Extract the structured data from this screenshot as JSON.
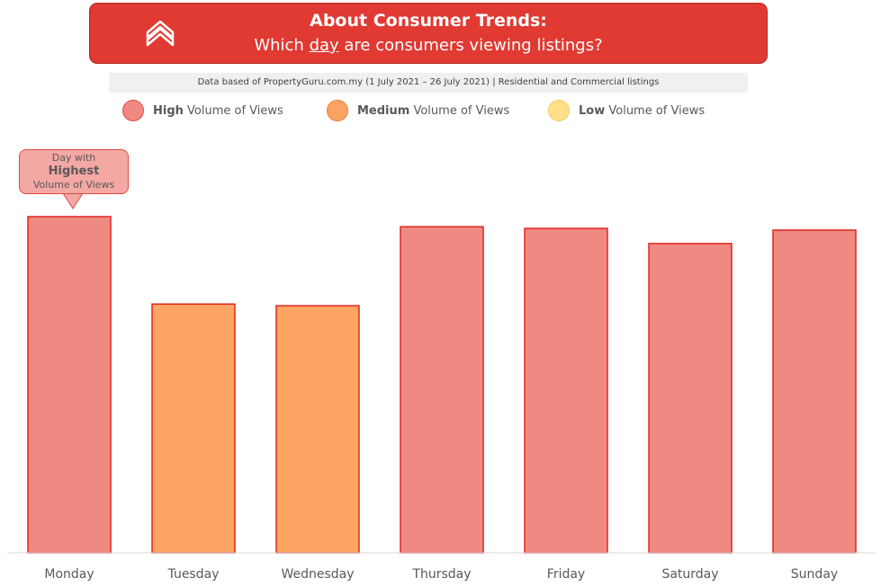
{
  "header": {
    "title": "About Consumer Trends:",
    "subtitle_pre": "Which ",
    "subtitle_underlined": "day",
    "subtitle_post": " are consumers viewing listings?",
    "logo_icon": "propertyguru-logo-icon"
  },
  "source_note": "Data based of PropertyGuru.com.my (1 July 2021 – 26 July 2021) | Residential and Commercial listings",
  "legend": [
    {
      "bold": "High",
      "rest": " Volume of Views",
      "color": "#ef8a83",
      "border": "#e04a43"
    },
    {
      "bold": "Medium",
      "rest": " Volume of Views",
      "color": "#fba463",
      "border": "#f27a30"
    },
    {
      "bold": "Low",
      "rest": " Volume of Views",
      "color": "#ffe08a",
      "border": "#f5cd5a"
    }
  ],
  "callout": {
    "line1": "Day with",
    "line2": "Highest",
    "line3": "Volume of Views",
    "target": "Monday"
  },
  "chart_data": {
    "type": "bar",
    "categories": [
      "Monday",
      "Tuesday",
      "Wednesday",
      "Thursday",
      "Friday",
      "Saturday",
      "Sunday"
    ],
    "values": [
      100,
      74,
      73.5,
      97,
      96.5,
      92,
      96
    ],
    "levels": [
      "High",
      "Medium",
      "Medium",
      "High",
      "High",
      "High",
      "High"
    ],
    "title": "",
    "xlabel": "",
    "ylabel": "",
    "ylim": [
      0,
      100
    ],
    "grid": false,
    "legend_position": "top",
    "colors": {
      "High": {
        "fill": "#ef8a83",
        "stroke": "#e0261f"
      },
      "Medium": {
        "fill": "#fca562",
        "stroke": "#e0261f"
      },
      "Low": {
        "fill": "#ffe08a",
        "stroke": "#e0261f"
      }
    }
  }
}
